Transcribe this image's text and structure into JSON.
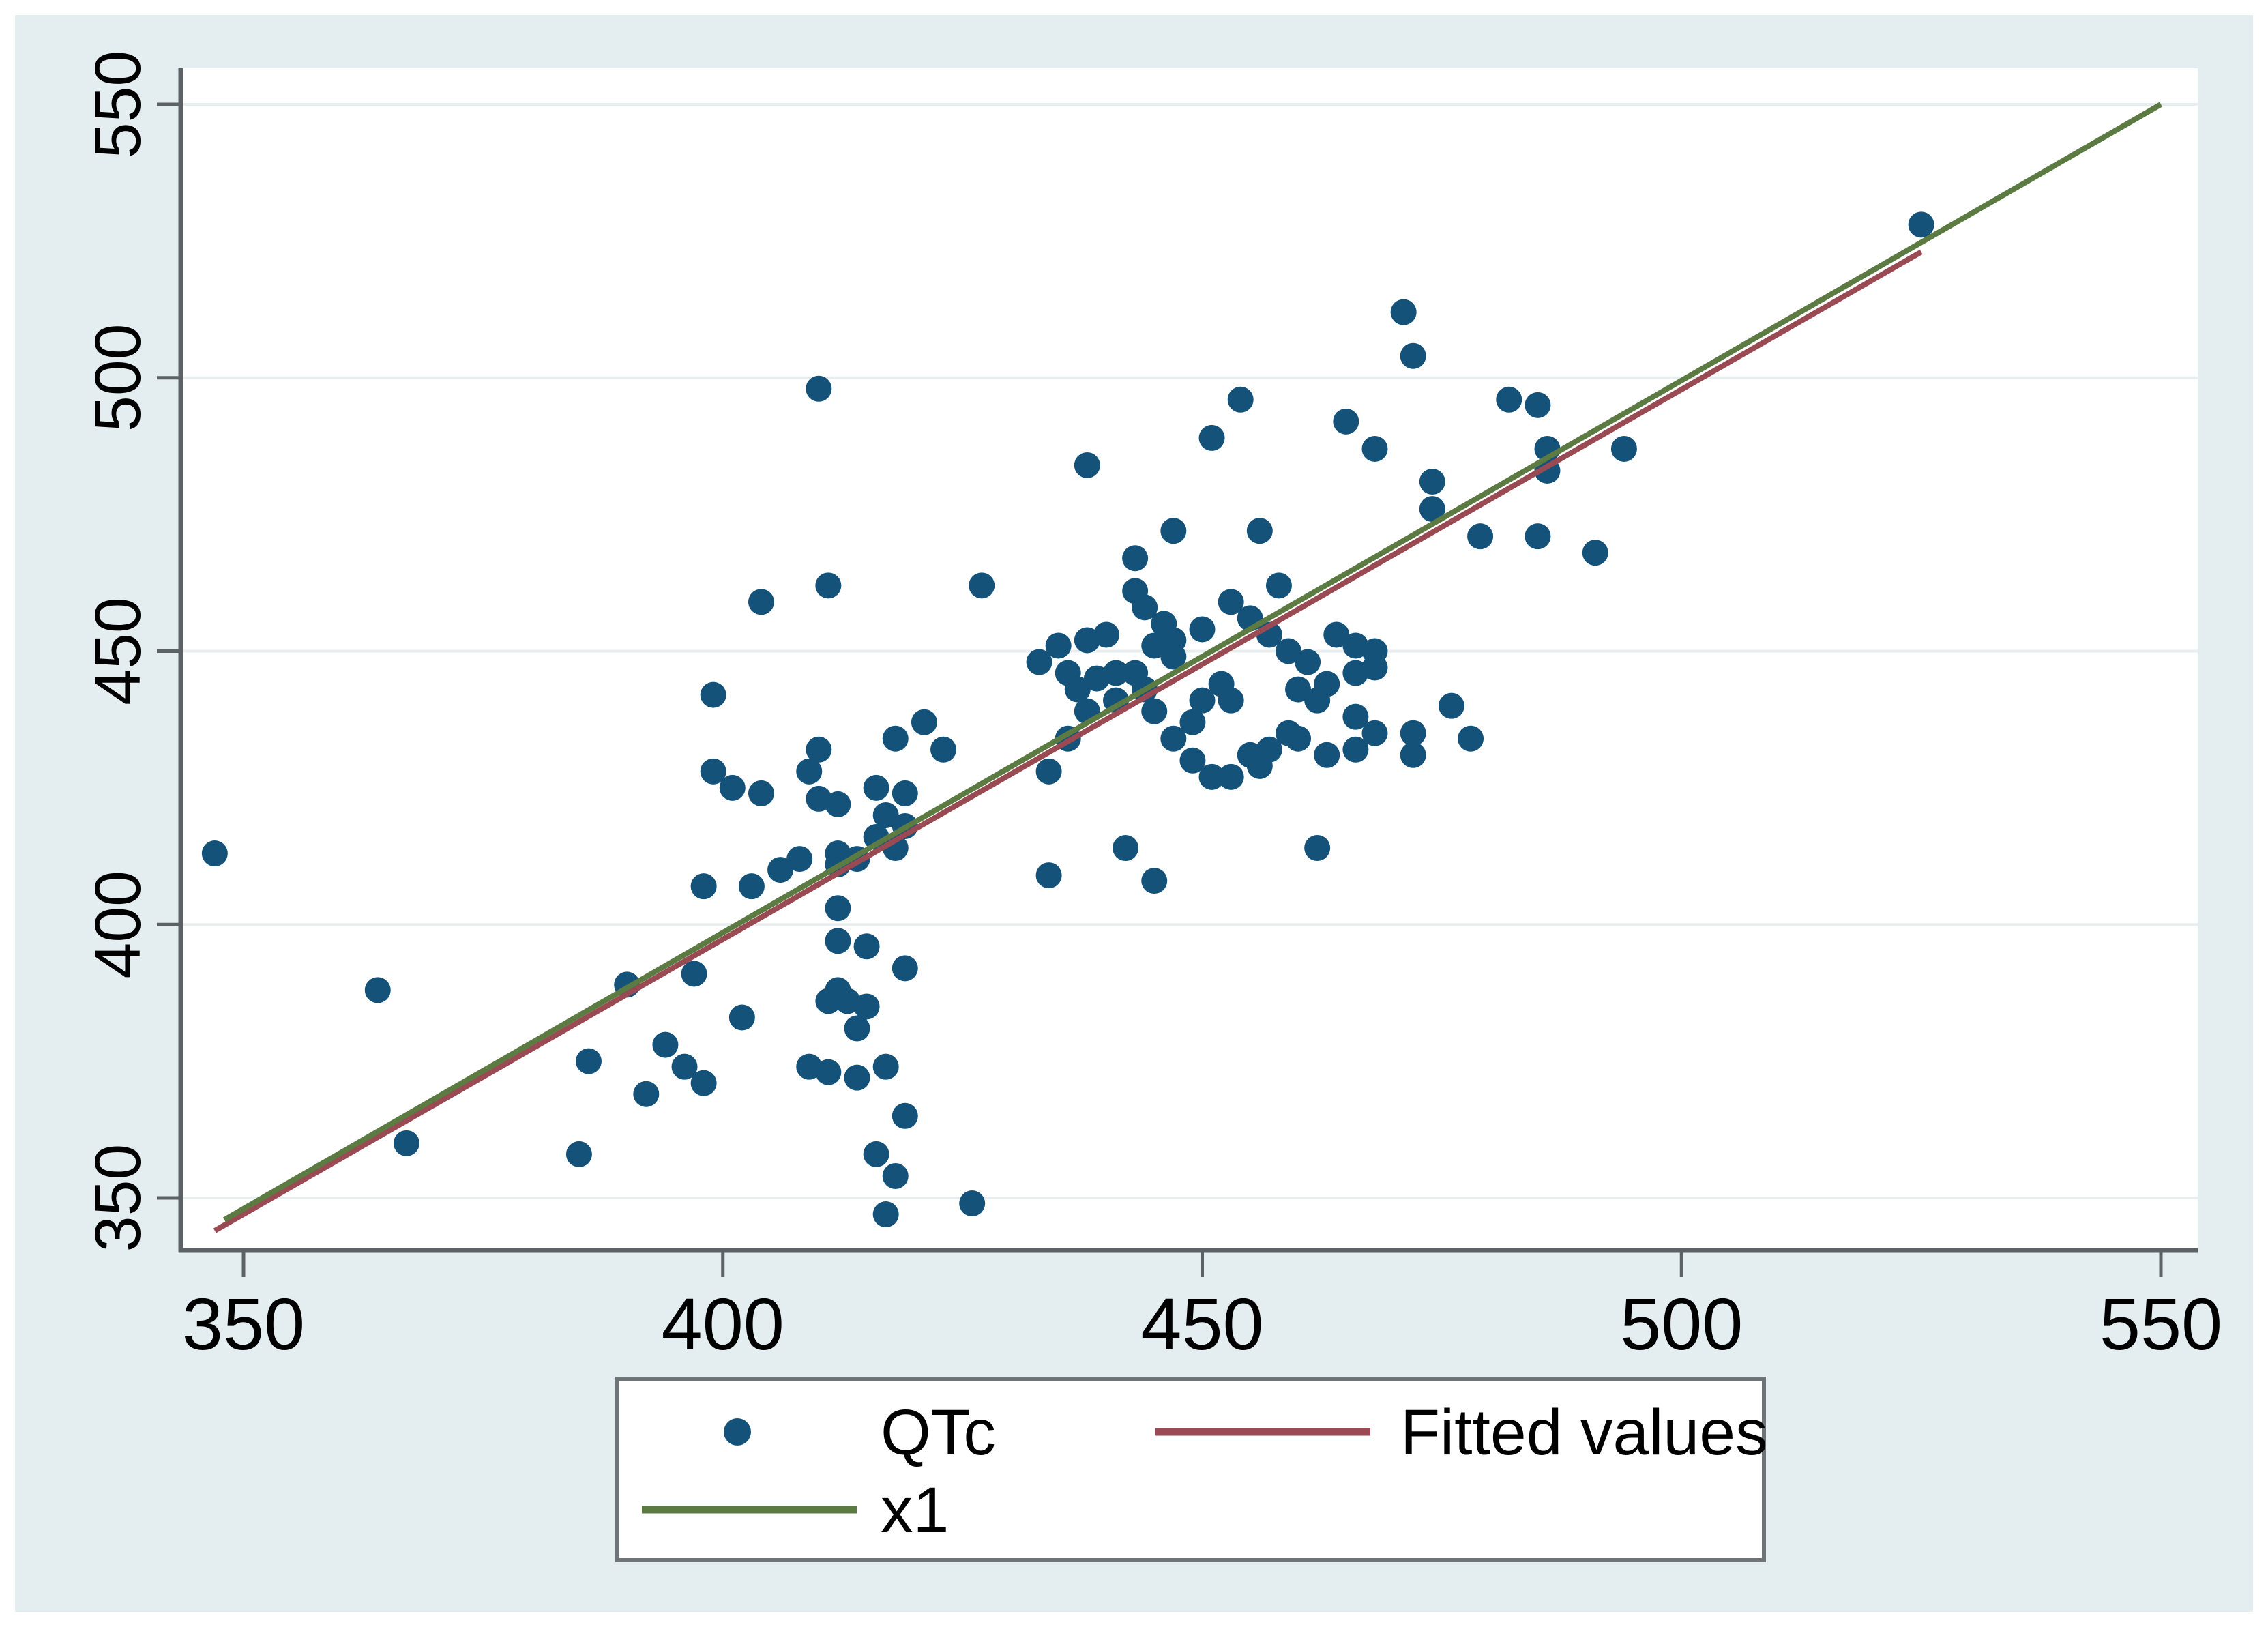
{
  "figure": {
    "outer_background": "#ffffff",
    "canvas_background": "#e4eef1",
    "plot_background": "#ffffff",
    "gridline_color": "#e8edef",
    "axis_color": "#5b6165",
    "text_color": "#000000",
    "legend_border_color": "#6e7477",
    "legend_background": "#ffffff"
  },
  "chart_data": {
    "type": "scatter",
    "title": "",
    "xlabel": "",
    "ylabel": "",
    "x_ticks": [
      "350",
      "400",
      "450",
      "500",
      "550"
    ],
    "y_ticks": [
      "350",
      "400",
      "450",
      "500",
      "550"
    ],
    "x_tick_values": [
      350,
      400,
      450,
      500,
      550
    ],
    "y_tick_values": [
      350,
      400,
      450,
      500,
      550
    ],
    "xlim": [
      343,
      554
    ],
    "ylim": [
      340,
      557
    ],
    "grid": "horizontal-only",
    "legend_position": "bottom",
    "series": [
      {
        "name": "QTc",
        "kind": "scatter",
        "color": "#14527a",
        "points": [
          [
            347,
            413
          ],
          [
            364,
            388
          ],
          [
            367,
            360
          ],
          [
            385,
            358
          ],
          [
            386,
            375
          ],
          [
            390,
            389
          ],
          [
            394,
            378
          ],
          [
            392,
            369
          ],
          [
            396,
            374
          ],
          [
            398,
            371
          ],
          [
            399,
            442
          ],
          [
            404,
            459
          ],
          [
            398,
            407
          ],
          [
            397,
            391
          ],
          [
            402,
            383
          ],
          [
            403,
            407
          ],
          [
            399,
            428
          ],
          [
            401,
            425
          ],
          [
            404,
            424
          ],
          [
            406,
            410
          ],
          [
            408,
            412
          ],
          [
            410,
            432
          ],
          [
            409,
            428
          ],
          [
            410,
            423
          ],
          [
            412,
            422
          ],
          [
            416,
            425
          ],
          [
            417,
            420
          ],
          [
            418,
            414
          ],
          [
            412,
            411
          ],
          [
            414,
            412
          ],
          [
            412,
            413
          ],
          [
            412,
            403
          ],
          [
            412,
            397
          ],
          [
            415,
            396
          ],
          [
            412,
            388
          ],
          [
            413,
            386
          ],
          [
            414,
            381
          ],
          [
            411,
            386
          ],
          [
            415,
            385
          ],
          [
            417,
            374
          ],
          [
            419,
            365
          ],
          [
            416,
            358
          ],
          [
            418,
            354
          ],
          [
            417,
            347
          ],
          [
            426,
            349
          ],
          [
            409,
            374
          ],
          [
            411,
            373
          ],
          [
            414,
            372
          ],
          [
            419,
            392
          ],
          [
            410,
            498
          ],
          [
            418,
            434
          ],
          [
            421,
            437
          ],
          [
            423,
            432
          ],
          [
            419,
            424
          ],
          [
            419,
            418
          ],
          [
            416,
            416
          ],
          [
            434,
            428
          ],
          [
            436,
            434
          ],
          [
            443,
            461
          ],
          [
            444,
            458
          ],
          [
            446,
            455
          ],
          [
            447,
            452
          ],
          [
            445,
            451
          ],
          [
            440,
            453
          ],
          [
            438,
            452
          ],
          [
            435,
            451
          ],
          [
            433,
            448
          ],
          [
            436,
            446
          ],
          [
            437,
            443
          ],
          [
            439,
            445
          ],
          [
            441,
            446
          ],
          [
            443,
            446
          ],
          [
            444,
            443
          ],
          [
            441,
            441
          ],
          [
            438,
            439
          ],
          [
            445,
            439
          ],
          [
            447,
            449
          ],
          [
            450,
            454
          ],
          [
            453,
            459
          ],
          [
            455,
            456
          ],
          [
            458,
            462
          ],
          [
            457,
            453
          ],
          [
            459,
            450
          ],
          [
            461,
            448
          ],
          [
            464,
            453
          ],
          [
            466,
            451
          ],
          [
            468,
            450
          ],
          [
            468,
            447
          ],
          [
            466,
            446
          ],
          [
            463,
            444
          ],
          [
            460,
            443
          ],
          [
            462,
            441
          ],
          [
            452,
            444
          ],
          [
            450,
            441
          ],
          [
            453,
            441
          ],
          [
            449,
            437
          ],
          [
            447,
            434
          ],
          [
            449,
            430
          ],
          [
            451,
            427
          ],
          [
            453,
            427
          ],
          [
            455,
            431
          ],
          [
            456,
            429
          ],
          [
            457,
            432
          ],
          [
            459,
            435
          ],
          [
            460,
            434
          ],
          [
            463,
            431
          ],
          [
            466,
            438
          ],
          [
            468,
            435
          ],
          [
            466,
            432
          ],
          [
            472,
            435
          ],
          [
            472,
            431
          ],
          [
            476,
            440
          ],
          [
            478,
            434
          ],
          [
            462,
            414
          ],
          [
            442,
            414
          ],
          [
            445,
            408
          ],
          [
            434,
            409
          ],
          [
            438,
            484
          ],
          [
            451,
            489
          ],
          [
            454,
            496
          ],
          [
            465,
            492
          ],
          [
            468,
            487
          ],
          [
            471,
            512
          ],
          [
            472,
            504
          ],
          [
            474,
            481
          ],
          [
            474,
            476
          ],
          [
            482,
            496
          ],
          [
            479,
            471
          ],
          [
            447,
            472
          ],
          [
            456,
            472
          ],
          [
            443,
            467
          ],
          [
            427,
            462
          ],
          [
            411,
            462
          ],
          [
            485,
            495
          ],
          [
            486,
            487
          ],
          [
            486,
            483
          ],
          [
            485,
            471
          ],
          [
            491,
            468
          ],
          [
            494,
            487
          ],
          [
            525,
            528
          ]
        ]
      },
      {
        "name": "Fitted values",
        "kind": "line",
        "color": "#9a4a52",
        "points": [
          [
            347,
            344
          ],
          [
            525,
            523
          ]
        ]
      },
      {
        "name": "x1",
        "kind": "line",
        "color": "#5c7b42",
        "points": [
          [
            348,
            346
          ],
          [
            550,
            550
          ]
        ]
      }
    ],
    "legend": {
      "entries": [
        {
          "label": "QTc",
          "marker": "dot",
          "color": "#14527a"
        },
        {
          "label": "Fitted values",
          "marker": "line",
          "color": "#9a4a52"
        },
        {
          "label": "x1",
          "marker": "line",
          "color": "#5c7b42"
        }
      ]
    }
  }
}
